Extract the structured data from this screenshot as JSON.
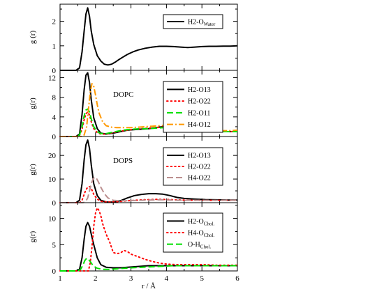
{
  "chart_data": [
    {
      "type": "line",
      "ylabel": "g (r)",
      "xlim": [
        1,
        6
      ],
      "ylim": [
        0,
        2.7
      ],
      "yticks": [
        0,
        1,
        2
      ],
      "annotation": "",
      "legend_position": "top-right",
      "series": [
        {
          "name": "H2-O",
          "name_sub": "Water",
          "color": "#000000",
          "dash": "solid",
          "x": [
            1.0,
            1.45,
            1.55,
            1.62,
            1.68,
            1.73,
            1.78,
            1.83,
            1.88,
            1.95,
            2.05,
            2.15,
            2.25,
            2.35,
            2.45,
            2.55,
            2.65,
            2.75,
            2.9,
            3.05,
            3.2,
            3.4,
            3.6,
            3.8,
            4.0,
            4.2,
            4.4,
            4.6,
            4.8,
            5.0,
            5.2,
            5.4,
            5.6,
            5.8,
            6.0
          ],
          "y": [
            0,
            0,
            0.1,
            0.75,
            1.6,
            2.3,
            2.55,
            2.2,
            1.6,
            1.05,
            0.6,
            0.38,
            0.25,
            0.22,
            0.25,
            0.33,
            0.43,
            0.52,
            0.65,
            0.75,
            0.83,
            0.9,
            0.95,
            0.98,
            0.98,
            0.97,
            0.95,
            0.93,
            0.95,
            0.97,
            0.98,
            0.98,
            0.99,
            0.99,
            1.0
          ]
        }
      ]
    },
    {
      "type": "line",
      "ylabel": "g(r)",
      "xlim": [
        1,
        6
      ],
      "ylim": [
        0,
        13.5
      ],
      "yticks": [
        0,
        4,
        8,
        12
      ],
      "annotation": "DOPC",
      "legend_position": "top-right",
      "series": [
        {
          "name": "H2-O13",
          "name_sub": "",
          "color": "#000000",
          "dash": "solid",
          "x": [
            1.0,
            1.45,
            1.55,
            1.62,
            1.68,
            1.73,
            1.78,
            1.83,
            1.88,
            1.95,
            2.05,
            2.15,
            2.3,
            2.5,
            2.7,
            2.9,
            3.1,
            3.3,
            3.5,
            3.7,
            3.9,
            4.0,
            4.2,
            4.4,
            4.6,
            4.8,
            5.0,
            5.2,
            5.4,
            5.6,
            5.8,
            6.0
          ],
          "y": [
            0,
            0,
            0.5,
            4.5,
            9.5,
            12.5,
            13.0,
            11.0,
            7.5,
            3.8,
            1.6,
            0.7,
            0.5,
            0.7,
            1.0,
            1.3,
            1.4,
            1.5,
            1.6,
            1.8,
            2.0,
            2.1,
            1.8,
            1.4,
            1.2,
            1.1,
            1.0,
            1.0,
            1.0,
            1.0,
            1.0,
            1.0
          ]
        },
        {
          "name": "H2-O22",
          "name_sub": "",
          "color": "#ff0000",
          "dash": "dot",
          "x": [
            1.0,
            1.45,
            1.55,
            1.62,
            1.68,
            1.73,
            1.78,
            1.83,
            1.88,
            1.95,
            2.05,
            2.15,
            2.3,
            2.5,
            2.7,
            2.9,
            3.1,
            3.3,
            3.5,
            3.7,
            3.9,
            4.1,
            4.3,
            4.5,
            4.8,
            5.1,
            5.4,
            5.7,
            6.0
          ],
          "y": [
            0,
            0,
            0.2,
            1.5,
            3.4,
            4.6,
            5.0,
            4.4,
            3.0,
            1.6,
            0.8,
            0.5,
            0.5,
            0.8,
            1.1,
            1.3,
            1.5,
            1.6,
            1.7,
            1.8,
            1.9,
            1.8,
            1.5,
            1.3,
            1.1,
            1.0,
            1.0,
            1.0,
            1.0
          ]
        },
        {
          "name": "H2-O11",
          "name_sub": "",
          "color": "#00e000",
          "dash": "dashdash",
          "x": [
            1.0,
            1.45,
            1.55,
            1.62,
            1.68,
            1.73,
            1.78,
            1.83,
            1.88,
            1.95,
            2.05,
            2.15,
            2.3,
            2.5,
            2.7,
            2.9,
            3.1,
            3.3,
            3.5,
            3.7,
            3.9,
            4.1,
            4.3,
            4.5,
            4.8,
            5.1,
            5.4,
            5.7,
            6.0
          ],
          "y": [
            0,
            0,
            0.3,
            2.0,
            4.2,
            5.4,
            5.6,
            5.0,
            3.6,
            2.0,
            1.0,
            0.6,
            0.6,
            0.9,
            1.2,
            1.4,
            1.5,
            1.6,
            1.6,
            1.7,
            1.8,
            1.7,
            1.4,
            1.2,
            1.1,
            1.0,
            1.0,
            1.0,
            1.0
          ]
        },
        {
          "name": "H4-O12",
          "name_sub": "",
          "color": "#ff9900",
          "dash": "dashdot",
          "x": [
            1.0,
            1.6,
            1.68,
            1.75,
            1.8,
            1.85,
            1.9,
            1.95,
            2.0,
            2.05,
            2.1,
            2.2,
            2.3,
            2.45,
            2.6,
            2.8,
            3.0,
            3.2,
            3.4,
            3.6,
            3.8,
            4.0,
            4.2,
            4.4,
            4.6,
            4.8,
            5.0,
            5.2,
            5.4,
            5.6,
            5.8,
            6.0
          ],
          "y": [
            0,
            0,
            0.3,
            2.0,
            5.5,
            9.0,
            10.8,
            10.2,
            8.5,
            6.5,
            4.8,
            3.0,
            2.2,
            1.9,
            1.8,
            1.8,
            1.8,
            1.9,
            2.0,
            2.1,
            2.2,
            2.3,
            2.2,
            2.0,
            1.8,
            1.6,
            1.4,
            1.3,
            1.2,
            1.2,
            1.2,
            1.3
          ]
        }
      ]
    },
    {
      "type": "line",
      "ylabel": "g(r)",
      "xlim": [
        1,
        6
      ],
      "ylim": [
        0,
        28
      ],
      "yticks": [
        0,
        10,
        20
      ],
      "annotation": "DOPS",
      "legend_position": "top-right",
      "series": [
        {
          "name": "H2-O13",
          "name_sub": "",
          "color": "#000000",
          "dash": "solid",
          "x": [
            1.0,
            1.45,
            1.55,
            1.62,
            1.68,
            1.73,
            1.78,
            1.83,
            1.88,
            1.95,
            2.05,
            2.15,
            2.3,
            2.5,
            2.7,
            2.9,
            3.1,
            3.3,
            3.5,
            3.7,
            3.9,
            4.1,
            4.3,
            4.5,
            4.8,
            5.1,
            5.4,
            5.7,
            6.0
          ],
          "y": [
            0,
            0,
            1.0,
            8.0,
            18.0,
            24.5,
            26.5,
            23.0,
            16.0,
            8.0,
            3.0,
            1.0,
            0.3,
            0.2,
            0.8,
            2.0,
            3.0,
            3.5,
            3.8,
            3.8,
            3.6,
            3.0,
            2.2,
            1.8,
            1.5,
            1.3,
            1.2,
            1.1,
            1.1
          ]
        },
        {
          "name": "H2-O22",
          "name_sub": "",
          "color": "#ff0000",
          "dash": "dot",
          "x": [
            1.0,
            1.55,
            1.62,
            1.68,
            1.73,
            1.78,
            1.83,
            1.88,
            1.95,
            2.05,
            2.15,
            2.3,
            2.5,
            2.7,
            2.9,
            3.1,
            3.3,
            3.5,
            3.7,
            3.9,
            4.1,
            4.3,
            4.5,
            4.8,
            5.1,
            5.4,
            5.7,
            6.0
          ],
          "y": [
            0,
            0,
            1.0,
            3.5,
            5.5,
            6.5,
            6.8,
            6.0,
            3.5,
            1.5,
            0.6,
            0.3,
            0.3,
            0.5,
            0.8,
            1.0,
            1.2,
            1.3,
            1.4,
            1.4,
            1.3,
            1.2,
            1.1,
            1.0,
            1.0,
            1.0,
            1.0,
            1.0
          ]
        },
        {
          "name": "H4-O22",
          "name_sub": "",
          "color": "#bc8f8f",
          "dash": "dashdash",
          "x": [
            1.0,
            1.65,
            1.72,
            1.78,
            1.83,
            1.88,
            1.93,
            1.98,
            2.03,
            2.08,
            2.15,
            2.25,
            2.35,
            2.5,
            2.7,
            2.9,
            3.1,
            3.3,
            3.5,
            3.7,
            3.9,
            4.1,
            4.3,
            4.5,
            4.8,
            5.1,
            5.4,
            5.7,
            6.0
          ],
          "y": [
            0,
            0,
            0.5,
            2.0,
            5.0,
            8.0,
            10.0,
            10.8,
            10.2,
            8.8,
            6.5,
            3.8,
            2.0,
            1.0,
            0.8,
            0.8,
            0.9,
            1.0,
            1.1,
            1.2,
            1.2,
            1.1,
            1.0,
            1.0,
            1.0,
            1.0,
            1.0,
            1.0,
            1.0
          ]
        }
      ]
    },
    {
      "type": "line",
      "ylabel": "g(r)",
      "xlabel": "r / Å",
      "xlim": [
        1,
        6
      ],
      "ylim": [
        0,
        13
      ],
      "yticks": [
        0,
        5,
        10
      ],
      "xticks": [
        1,
        2,
        3,
        4,
        5,
        6
      ],
      "annotation": "",
      "legend_position": "top-right",
      "series": [
        {
          "name": "H2-O",
          "name_sub": "Chol.",
          "color": "#000000",
          "dash": "solid",
          "x": [
            1.0,
            1.45,
            1.55,
            1.62,
            1.68,
            1.73,
            1.78,
            1.83,
            1.88,
            1.95,
            2.05,
            2.15,
            2.3,
            2.5,
            2.7,
            2.9,
            3.1,
            3.3,
            3.5,
            3.7,
            3.9,
            4.1,
            4.3,
            4.5,
            4.8,
            5.1,
            5.4,
            5.7,
            6.0
          ],
          "y": [
            0,
            0,
            0.3,
            2.5,
            6.0,
            8.5,
            9.2,
            8.5,
            7.0,
            5.0,
            2.5,
            1.2,
            0.7,
            0.6,
            0.6,
            0.7,
            0.8,
            0.9,
            1.0,
            1.0,
            1.0,
            1.0,
            1.0,
            1.0,
            1.0,
            1.0,
            1.0,
            1.0,
            1.0
          ]
        },
        {
          "name": "H4-O",
          "name_sub": "Chol.",
          "color": "#ff0000",
          "dash": "dot",
          "x": [
            1.0,
            1.8,
            1.85,
            1.9,
            1.95,
            2.0,
            2.05,
            2.1,
            2.15,
            2.2,
            2.3,
            2.4,
            2.5,
            2.6,
            2.7,
            2.8,
            2.9,
            3.0,
            3.2,
            3.4,
            3.6,
            3.8,
            4.0,
            4.3,
            4.6,
            5.0,
            5.4,
            5.8,
            6.0
          ],
          "y": [
            0,
            0,
            1.5,
            4.5,
            8.5,
            11.0,
            12.0,
            11.5,
            10.5,
            9.0,
            7.0,
            5.5,
            3.5,
            3.3,
            3.4,
            3.9,
            3.7,
            3.2,
            2.7,
            2.2,
            1.8,
            1.5,
            1.3,
            1.2,
            1.2,
            1.2,
            1.1,
            1.1,
            1.1
          ]
        },
        {
          "name": "O-H",
          "name_sub": "Chol.",
          "color": "#00e000",
          "dash": "dashdash",
          "x": [
            1.0,
            1.5,
            1.58,
            1.65,
            1.7,
            1.75,
            1.8,
            1.85,
            1.9,
            1.95,
            2.05,
            2.2,
            2.4,
            2.6,
            2.8,
            3.0,
            3.3,
            3.6,
            3.9,
            4.2,
            4.5,
            4.8,
            5.1,
            5.4,
            5.7,
            6.0
          ],
          "y": [
            0,
            0,
            0.3,
            1.2,
            2.0,
            2.4,
            2.2,
            1.8,
            1.3,
            0.9,
            0.5,
            0.3,
            0.3,
            0.4,
            0.5,
            0.6,
            0.7,
            0.8,
            0.9,
            1.0,
            1.0,
            1.0,
            1.0,
            1.0,
            1.0,
            1.0
          ]
        }
      ]
    }
  ]
}
